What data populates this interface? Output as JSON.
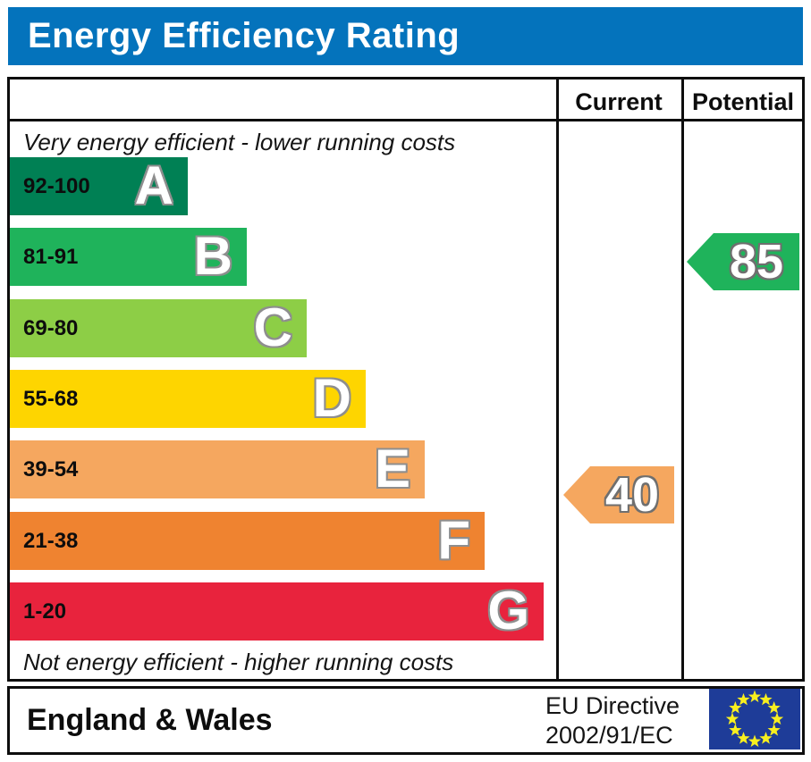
{
  "header": {
    "title": "Energy Efficiency Rating",
    "bg_color": "#0473bc"
  },
  "columns": {
    "current": "Current",
    "potential": "Potential"
  },
  "captions": {
    "top": "Very energy efficient - lower running costs",
    "bottom": "Not energy efficient - higher running costs"
  },
  "chart_data": {
    "type": "bar",
    "title": "Energy Efficiency Rating",
    "bands": [
      {
        "letter": "A",
        "range": "92-100",
        "color": "#008054"
      },
      {
        "letter": "B",
        "range": "81-91",
        "color": "#1fb35b"
      },
      {
        "letter": "C",
        "range": "69-80",
        "color": "#8dce46"
      },
      {
        "letter": "D",
        "range": "55-68",
        "color": "#fed500"
      },
      {
        "letter": "E",
        "range": "39-54",
        "color": "#f5a75f"
      },
      {
        "letter": "F",
        "range": "21-38",
        "color": "#ef8330"
      },
      {
        "letter": "G",
        "range": "1-20",
        "color": "#e8233d"
      }
    ],
    "current": {
      "value": 40,
      "band": "E",
      "color": "#f5a75f"
    },
    "potential": {
      "value": 85,
      "band": "B",
      "color": "#1fb35b"
    }
  },
  "footer": {
    "region": "England & Wales",
    "directive_line1": "EU Directive",
    "directive_line2": "2002/91/EC",
    "flag_bg": "#1e3c98",
    "flag_star_color": "#f8ef1f"
  }
}
